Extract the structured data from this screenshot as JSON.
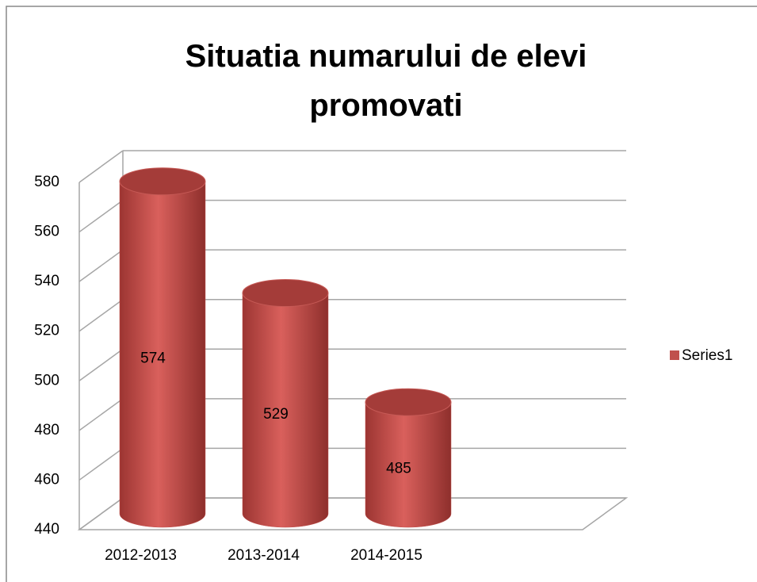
{
  "chart_data": {
    "type": "cylinder",
    "title": "Situatia numarului de elevi promovati",
    "categories": [
      "2012-2013",
      "2013-2014",
      "2014-2015"
    ],
    "series": [
      {
        "name": "Series1",
        "color": "#c0504d",
        "values": [
          574,
          529,
          485
        ]
      }
    ],
    "ylim": [
      440,
      580
    ],
    "yticks": [
      440,
      460,
      480,
      500,
      520,
      540,
      560,
      580
    ],
    "grid": true,
    "legend": "right"
  }
}
